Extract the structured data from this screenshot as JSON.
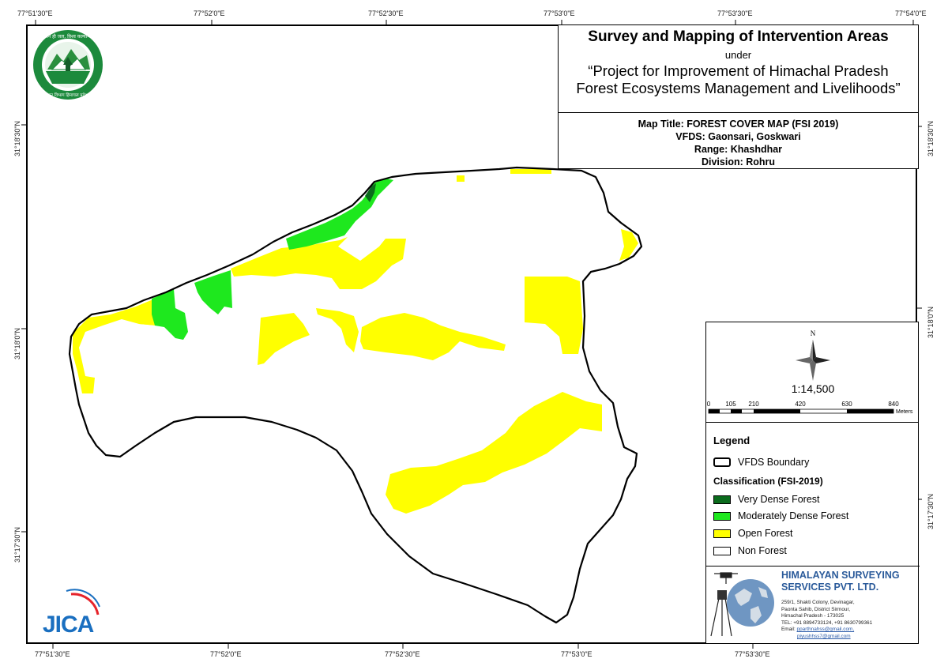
{
  "title": {
    "main": "Survey and Mapping of Intervention Areas",
    "under": "under",
    "project_line1": "“Project for Improvement of Himachal Pradesh",
    "project_line2": "Forest Ecosystems Management and Livelihoods”"
  },
  "map_info": {
    "title": "Map Title: FOREST COVER MAP (FSI 2019)",
    "vfds": "VFDS: Gaonsari, Goskwari",
    "range": "Range: Khashdhar",
    "division": "Division: Rohru"
  },
  "coords": {
    "top": [
      "77°51'30\"E",
      "77°52'0\"E",
      "77°52'30\"E",
      "77°53'0\"E",
      "77°53'30\"E",
      "77°54'0\"E"
    ],
    "bottom": [
      "77°51'30\"E",
      "77°52'0\"E",
      "77°52'30\"E",
      "77°53'0\"E",
      "77°53'30\"E"
    ],
    "left": [
      "31°18'30\"N",
      "31°18'0\"N",
      "31°17'30\"N"
    ],
    "right": [
      "31°18'30\"N",
      "31°18'0\"N",
      "31°17'30\"N"
    ]
  },
  "north_label": "N",
  "scale": {
    "ratio": "1:14,500",
    "ticks": [
      "0",
      "105",
      "210",
      "420",
      "630",
      "840"
    ],
    "unit": "Meters"
  },
  "legend": {
    "title": "Legend",
    "boundary_label": "VFDS Boundary",
    "classification_title": "Classification (FSI-2019)",
    "classes": [
      {
        "label": "Very Dense Forest",
        "color": "#0b6b1d"
      },
      {
        "label": "Moderately Dense Forest",
        "color": "#1ee81e"
      },
      {
        "label": "Open Forest",
        "color": "#ffff00"
      },
      {
        "label": "Non Forest",
        "color": "#ffffff"
      }
    ]
  },
  "company": {
    "name_line1": "HIMALAYAN SURVEYING",
    "name_line2": "SERVICES PVT. LTD.",
    "address": [
      "259/1, Shakti Colony, Devinagar,",
      "Paonta Sahib, District Sirmour,",
      "Himachal Pradesh - 173025",
      "TEL: +91 8894733124, +91 8630799361"
    ],
    "email_label": "Email:",
    "email1": "pparthnahss@gmail.com,",
    "email2": "piyushhss7@gmail.com"
  },
  "logos": {
    "forest_dept_text": "वन ही जल, विश्व कल्याण",
    "forest_dept_subtext": "वन विभाग हिमाचल प्रदेश",
    "jica": "JICA"
  }
}
